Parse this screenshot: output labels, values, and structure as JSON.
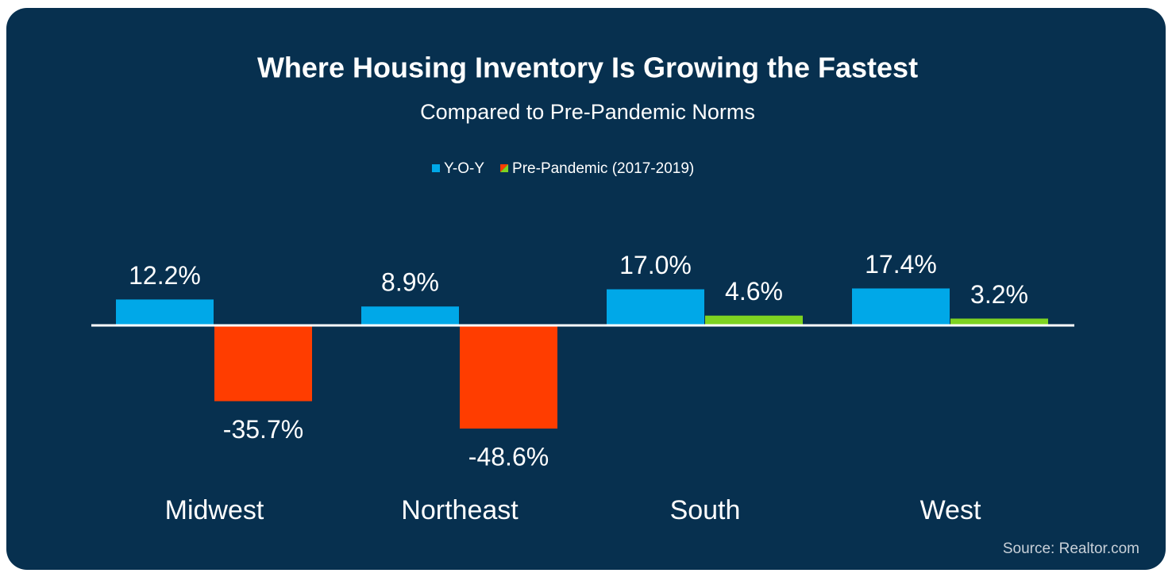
{
  "chart_data": {
    "type": "bar",
    "title": "Where Housing Inventory Is Growing the Fastest",
    "subtitle": "Compared to Pre-Pandemic Norms",
    "categories": [
      "Midwest",
      "Northeast",
      "South",
      "West"
    ],
    "series": [
      {
        "name": "Y-O-Y",
        "color": "#00a8e8",
        "values": [
          12.2,
          8.9,
          17.0,
          17.4
        ],
        "value_labels": [
          "12.2%",
          "8.9%",
          "17.0%",
          "17.4%"
        ]
      },
      {
        "name": "Pre-Pandemic (2017-2019)",
        "colors": [
          "#ff3d00",
          "#ff3d00",
          "#7ed321",
          "#7ed321"
        ],
        "values": [
          -35.7,
          -48.6,
          4.6,
          3.2
        ],
        "value_labels": [
          "-35.7%",
          "-48.6%",
          "4.6%",
          "3.2%"
        ]
      }
    ],
    "source": "Source: Realtor.com"
  }
}
